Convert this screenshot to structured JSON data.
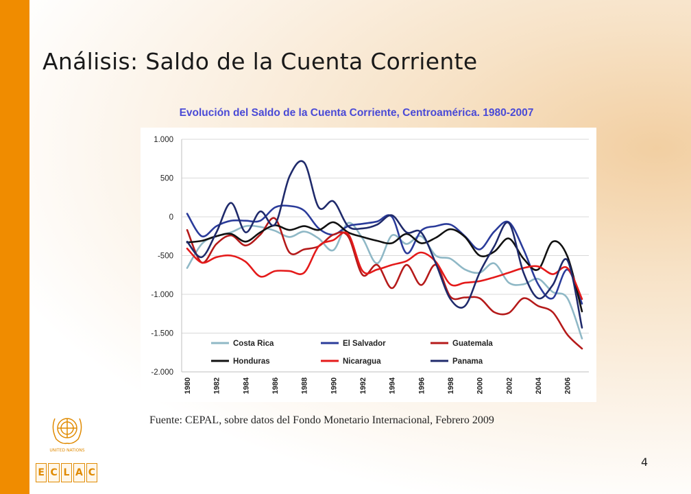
{
  "slide": {
    "title": "Análisis: Saldo de la Cuenta Corriente",
    "source": "Fuente: CEPAL, sobre datos del Fondo Monetario Internacional, Febrero 2009",
    "page_number": "4",
    "un_logo_text": "UNITED NATIONS",
    "eclac_letters": [
      "E",
      "C",
      "L",
      "A",
      "C"
    ]
  },
  "colors": {
    "orange_bar": "#f08c00",
    "chart_title": "#4a4ad6"
  },
  "chart_data": {
    "type": "line",
    "title": "Evolución del Saldo de la Cuenta Corriente, Centroamérica. 1980-2007",
    "xlabel": "",
    "ylabel": "",
    "ylim": [
      -2000,
      1000
    ],
    "y_ticks": [
      1000,
      500,
      0,
      -500,
      -1000,
      -1500,
      -2000
    ],
    "y_tick_labels": [
      "1.000",
      "500",
      "0",
      "-500",
      "-1.000",
      "-1.500",
      "-2.000"
    ],
    "x": [
      1980,
      1981,
      1982,
      1983,
      1984,
      1985,
      1986,
      1987,
      1988,
      1989,
      1990,
      1991,
      1992,
      1993,
      1994,
      1995,
      1996,
      1997,
      1998,
      1999,
      2000,
      2001,
      2002,
      2003,
      2004,
      2005,
      2006,
      2007
    ],
    "x_tick_labels": [
      "1980",
      "1982",
      "1984",
      "1986",
      "1988",
      "1990",
      "1992",
      "1994",
      "1996",
      "1998",
      "2000",
      "2002",
      "2004",
      "2006"
    ],
    "grid": true,
    "legend_position": "bottom-inside",
    "series": [
      {
        "name": "Costa Rica",
        "color": "#8fb8c6",
        "values": [
          -660,
          -350,
          -250,
          -200,
          -120,
          -130,
          -180,
          -260,
          -190,
          -280,
          -430,
          -80,
          -280,
          -600,
          -240,
          -350,
          -250,
          -500,
          -540,
          -680,
          -720,
          -600,
          -850,
          -870,
          -800,
          -970,
          -1050,
          -1570
        ]
      },
      {
        "name": "El Salvador",
        "color": "#2a3b9a",
        "values": [
          40,
          -250,
          -120,
          -50,
          -50,
          -50,
          120,
          140,
          80,
          -150,
          -230,
          -120,
          -90,
          -60,
          0,
          -470,
          -180,
          -120,
          -100,
          -250,
          -420,
          -190,
          -70,
          -420,
          -870,
          -1050,
          -680,
          -1120
        ]
      },
      {
        "name": "Guatemala",
        "color": "#b51a1a",
        "values": [
          -170,
          -590,
          -350,
          -240,
          -370,
          -230,
          -20,
          -460,
          -420,
          -380,
          -230,
          -250,
          -750,
          -620,
          -920,
          -620,
          -880,
          -620,
          -1030,
          -1040,
          -1050,
          -1230,
          -1240,
          -1050,
          -1150,
          -1230,
          -1520,
          -1700
        ]
      },
      {
        "name": "Honduras",
        "color": "#111111",
        "values": [
          -330,
          -310,
          -250,
          -220,
          -320,
          -200,
          -110,
          -170,
          -120,
          -170,
          -70,
          -200,
          -260,
          -310,
          -340,
          -220,
          -340,
          -270,
          -160,
          -260,
          -500,
          -450,
          -280,
          -540,
          -680,
          -320,
          -510,
          -1220
        ]
      },
      {
        "name": "Nicaragua",
        "color": "#e41a1a",
        "values": [
          -410,
          -590,
          -520,
          -500,
          -580,
          -770,
          -700,
          -700,
          -720,
          -380,
          -300,
          -220,
          -700,
          -680,
          -620,
          -570,
          -460,
          -580,
          -870,
          -850,
          -830,
          -780,
          -720,
          -660,
          -640,
          -740,
          -660,
          -1060
        ]
      },
      {
        "name": "Panama",
        "color": "#1f2a6b",
        "values": [
          -320,
          -520,
          -200,
          180,
          -200,
          70,
          -100,
          520,
          700,
          120,
          200,
          -120,
          -150,
          -100,
          20,
          -200,
          -200,
          -600,
          -1060,
          -1150,
          -720,
          -380,
          -80,
          -720,
          -1050,
          -880,
          -560,
          -1430
        ]
      }
    ]
  }
}
